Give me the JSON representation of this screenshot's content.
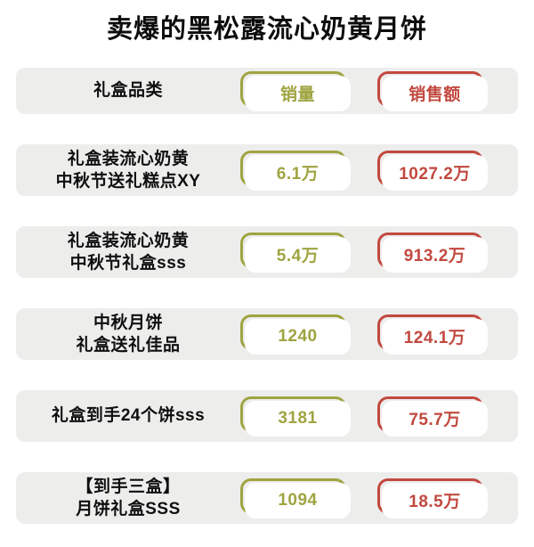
{
  "title": "卖爆的黑松露流心奶黄月饼",
  "colors": {
    "sales_volume_accent": "#9fa441",
    "sales_revenue_accent": "#c2493f",
    "row_background": "#ededec",
    "page_background": "#ffffff",
    "text": "#0d0d0d"
  },
  "header": {
    "category_label": "礼盒品类",
    "volume_label": "销量",
    "revenue_label": "销售额"
  },
  "rows": [
    {
      "name_line1": "礼盒装流心奶黄",
      "name_line2": "中秋节送礼糕点XY",
      "volume": "6.1万",
      "revenue": "1027.2万"
    },
    {
      "name_line1": "礼盒装流心奶黄",
      "name_line2": "中秋节礼盒sss",
      "volume": "5.4万",
      "revenue": "913.2万"
    },
    {
      "name_line1": "中秋月饼",
      "name_line2": "礼盒送礼佳品",
      "volume": "1240",
      "revenue": "124.1万"
    },
    {
      "name_line1": "礼盒到手24个饼sss",
      "name_line2": "",
      "volume": "3181",
      "revenue": "75.7万"
    },
    {
      "name_line1": "【到手三盒】",
      "name_line2": "月饼礼盒SSS",
      "volume": "1094",
      "revenue": "18.5万"
    }
  ],
  "chart_data": {
    "type": "table",
    "title": "卖爆的黑松露流心奶黄月饼",
    "columns": [
      "礼盒品类",
      "销量",
      "销售额"
    ],
    "rows": [
      [
        "礼盒装流心奶黄 中秋节送礼糕点XY",
        "6.1万",
        "1027.2万"
      ],
      [
        "礼盒装流心奶黄 中秋节礼盒sss",
        "5.4万",
        "913.2万"
      ],
      [
        "中秋月饼 礼盒送礼佳品",
        "1240",
        "124.1万"
      ],
      [
        "礼盒到手24个饼sss",
        "3181",
        "75.7万"
      ],
      [
        "【到手三盒】月饼礼盒SSS",
        "1094",
        "18.5万"
      ]
    ],
    "sales_volume_numeric": [
      61000,
      54000,
      1240,
      3181,
      1094
    ],
    "sales_revenue_numeric_wan": [
      1027.2,
      913.2,
      124.1,
      75.7,
      18.5
    ]
  }
}
